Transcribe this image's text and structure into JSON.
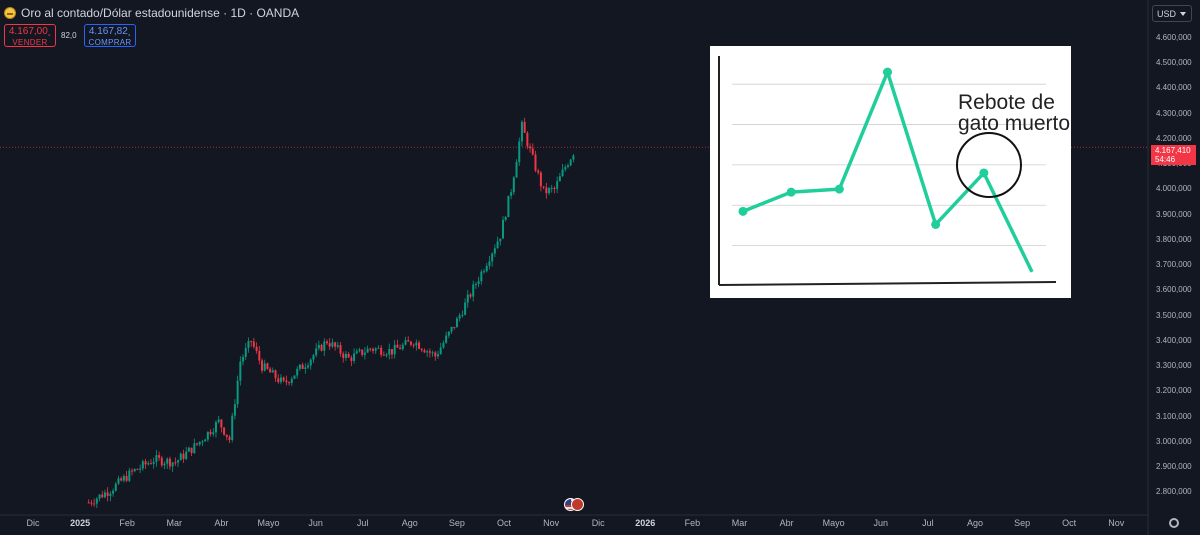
{
  "header": {
    "title": "Oro al contado/Dólar estadounidense · 1D · OANDA",
    "sell_price": "4.167,00¸",
    "sell_label": "VENDER",
    "spread": "82,0",
    "buy_price": "4.167,82¸",
    "buy_label": "COMPRAR",
    "currency": "USD"
  },
  "colors": {
    "background": "#131722",
    "bullish": "#089981",
    "bearish": "#f23645",
    "inset_line": "#1fce9a"
  },
  "price_label": {
    "price": "4.167,410",
    "countdown": "54:46"
  },
  "icons": {
    "symbol": "gold-coin-icon",
    "events": "flag-events-icon",
    "settings": "gear-icon"
  },
  "chart_data": [
    {
      "type": "candlestick",
      "title": "Oro al contado/Dólar estadounidense · 1D · OANDA",
      "x_tick_labels": [
        "Dic",
        "2025",
        "Feb",
        "Mar",
        "Abr",
        "Mayo",
        "Jun",
        "Jul",
        "Ago",
        "Sep",
        "Oct",
        "Nov",
        "Dic",
        "2026",
        "Feb",
        "Mar",
        "Abr",
        "Mayo",
        "Jun",
        "Jul",
        "Ago",
        "Sep",
        "Oct",
        "Nov"
      ],
      "y_tick_labels": [
        "4.600,000",
        "4.500,000",
        "4.400,000",
        "4.300,000",
        "4.200,000",
        "4.100,000",
        "4.000,000",
        "3.900,000",
        "3.800,000",
        "3.700,000",
        "3.600,000",
        "3.500,000",
        "3.400,000",
        "3.300,000",
        "3.200,000",
        "3.100,000",
        "3.000,000",
        "2.900,000",
        "2.800,000"
      ],
      "ylim": [
        2750,
        4600
      ],
      "current_price": 4167.41,
      "series": [
        {
          "dates": [
            "2025-01-06",
            "2025-01-20",
            "2025-02-03",
            "2025-02-17",
            "2025-03-03",
            "2025-03-17",
            "2025-03-31",
            "2025-04-07",
            "2025-04-14",
            "2025-04-21",
            "2025-04-28",
            "2025-05-12",
            "2025-05-26",
            "2025-06-09",
            "2025-06-23",
            "2025-07-07",
            "2025-07-21",
            "2025-08-04",
            "2025-08-18",
            "2025-09-01",
            "2025-09-15",
            "2025-09-29",
            "2025-10-06",
            "2025-10-13",
            "2025-10-20",
            "2025-10-27",
            "2025-11-03",
            "2025-11-10",
            "2025-11-17"
          ],
          "values": [
            2760,
            2810,
            2880,
            2930,
            2920,
            2990,
            3080,
            3010,
            3320,
            3400,
            3300,
            3230,
            3310,
            3400,
            3330,
            3370,
            3360,
            3400,
            3340,
            3480,
            3650,
            3820,
            4000,
            4250,
            4120,
            3990,
            4000,
            4090,
            4167
          ]
        }
      ]
    },
    {
      "type": "line",
      "annotation": "Rebote de gato muerto",
      "x": [
        1,
        2,
        3,
        4,
        5,
        6,
        7
      ],
      "values": [
        3.7,
        4.65,
        4.8,
        10.6,
        3.05,
        5.6,
        0.7
      ],
      "ylim": [
        0,
        11
      ]
    }
  ]
}
